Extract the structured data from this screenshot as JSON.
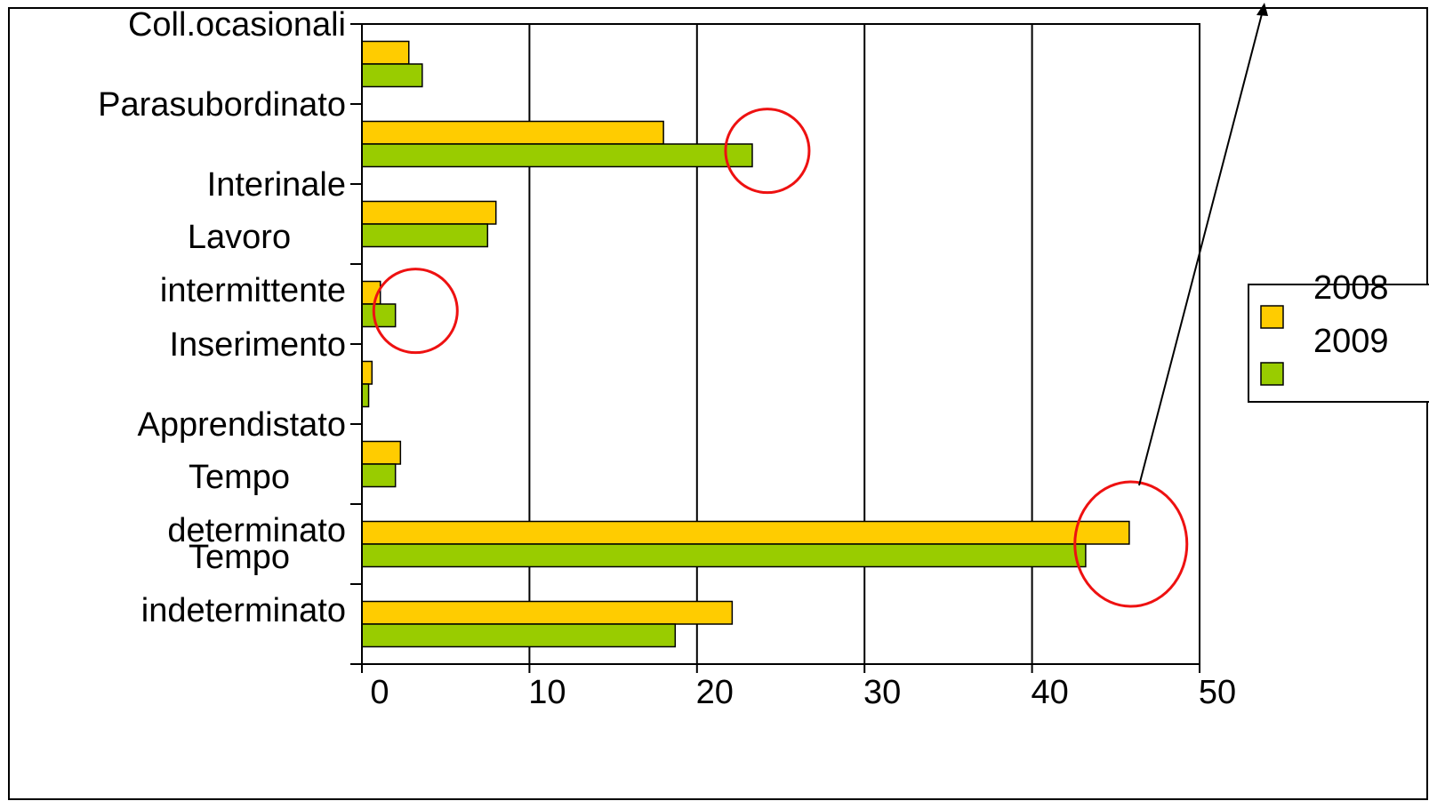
{
  "chart_data": {
    "type": "bar",
    "orientation": "horizontal",
    "categories": [
      [
        "Coll.ocasionali"
      ],
      [
        "Parasubordinato"
      ],
      [
        "Interinale"
      ],
      [
        "Lavoro",
        "intermittente"
      ],
      [
        "Inserimento"
      ],
      [
        "Apprendistato"
      ],
      [
        "Tempo",
        "determinato"
      ],
      [
        "Tempo",
        "indeterminato"
      ]
    ],
    "series": [
      {
        "name": "2008",
        "color": "#FFCC00",
        "values": [
          2.8,
          18,
          8,
          1.1,
          0.6,
          2.3,
          45.8,
          22.1
        ]
      },
      {
        "name": "2009",
        "color": "#99CC00",
        "values": [
          3.6,
          23.3,
          7.5,
          2,
          0.4,
          2,
          43.2,
          18.7
        ]
      }
    ],
    "xlim": [
      0,
      50
    ],
    "xticks": [
      "0",
      "10",
      "20",
      "30",
      "40",
      "50"
    ],
    "grid": "vertical",
    "legend_position": "right",
    "highlight_circles": [
      {
        "category": "Parasubordinato",
        "value": 24.2
      },
      {
        "category": "Lavoro intermittente",
        "value": 3.2
      },
      {
        "category": "Tempo determinato",
        "value": 45.9
      }
    ]
  },
  "colors": {
    "annotation": "#EE1111",
    "axis": "#000000",
    "background": "#FFFFFF"
  }
}
